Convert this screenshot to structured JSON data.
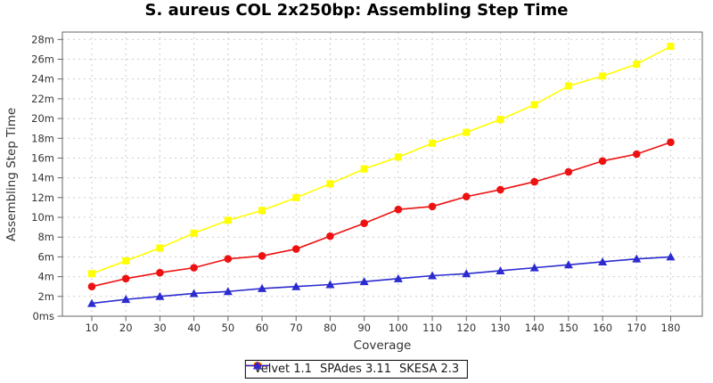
{
  "chart_data": {
    "type": "line",
    "title": "S. aureus COL 2x250bp: Assembling Step Time",
    "xlabel": "Coverage",
    "ylabel": "Assembling Step Time",
    "x": [
      10,
      20,
      30,
      40,
      50,
      60,
      70,
      80,
      90,
      100,
      110,
      120,
      130,
      140,
      150,
      160,
      170,
      180
    ],
    "x_tick_labels": [
      "10",
      "20",
      "30",
      "40",
      "50",
      "60",
      "70",
      "80",
      "90",
      "100",
      "110",
      "120",
      "130",
      "140",
      "150",
      "160",
      "170",
      "180"
    ],
    "xlim": [
      10,
      180
    ],
    "ylim": [
      0,
      28
    ],
    "y_unit": "minutes",
    "y_ticks": [
      0,
      2,
      4,
      6,
      8,
      10,
      12,
      14,
      16,
      18,
      20,
      22,
      24,
      26,
      28
    ],
    "y_tick_labels": [
      "0ms",
      "2m",
      "4m",
      "6m",
      "8m",
      "10m",
      "12m",
      "14m",
      "16m",
      "18m",
      "20m",
      "22m",
      "24m",
      "26m",
      "28m"
    ],
    "grid": true,
    "legend_position": "bottom-center",
    "series": [
      {
        "name": "Velvet 1.1",
        "marker": "square",
        "color": "#ffff00",
        "values": [
          4.3,
          5.6,
          6.9,
          8.4,
          9.7,
          10.7,
          12.0,
          13.4,
          14.9,
          16.1,
          17.5,
          18.6,
          19.9,
          21.4,
          23.3,
          24.3,
          25.5,
          27.3
        ]
      },
      {
        "name": "SPAdes 3.11",
        "marker": "circle",
        "color": "#ee1111",
        "values": [
          3.0,
          3.8,
          4.4,
          4.9,
          5.8,
          6.1,
          6.8,
          8.1,
          9.4,
          10.8,
          11.1,
          12.1,
          12.8,
          13.6,
          14.6,
          15.7,
          16.4,
          17.6
        ]
      },
      {
        "name": "SKESA 2.3",
        "marker": "triangle",
        "color": "#2b2bd0",
        "values": [
          1.3,
          1.7,
          2.0,
          2.3,
          2.5,
          2.8,
          3.0,
          3.2,
          3.5,
          3.8,
          4.1,
          4.3,
          4.6,
          4.9,
          5.2,
          5.5,
          5.8,
          6.0
        ]
      }
    ]
  },
  "colors": {
    "background": "#ffffff",
    "plot_border": "#666666",
    "gridline": "#cccccc",
    "tick_mark": "#666666",
    "tick_label": "#333333",
    "axis_title": "#333333",
    "title": "#000000",
    "legend_border": "#000000",
    "legend_text": "#1a1a1a"
  }
}
